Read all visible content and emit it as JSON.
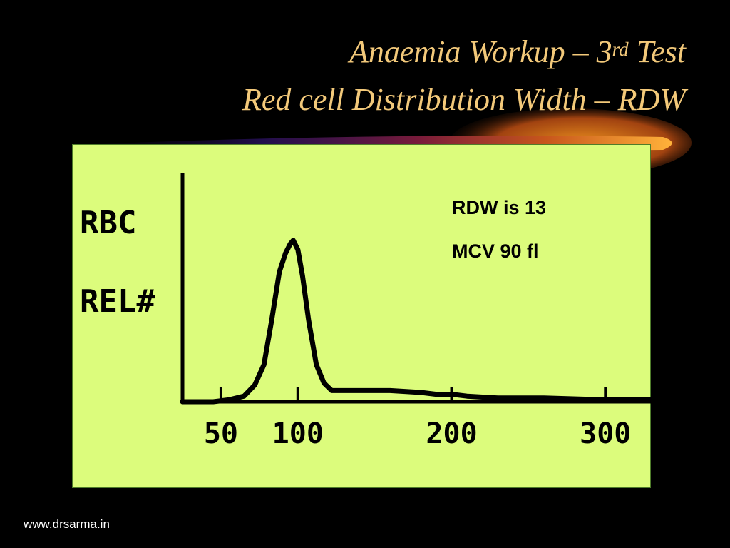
{
  "slide": {
    "title_main": "Anaemia Workup – 3",
    "title_sup": "rd",
    "title_tail": " Test",
    "subtitle": "Red cell Distribution Width – RDW",
    "notes": [
      "RDW is 13",
      "MCV 90 fl"
    ],
    "footer": "www.drsarma.in"
  },
  "colors": {
    "background": "#000000",
    "title": "#f3c97a",
    "panel": "#dcfc7c",
    "ink": "#000000",
    "footer": "#ffffff",
    "swoosh": "#e8891c"
  },
  "chart_data": {
    "type": "line",
    "ylabel_lines": [
      "RBC",
      "REL#"
    ],
    "xlabel": "",
    "x_ticks": [
      50,
      100,
      200,
      300
    ],
    "xlim": [
      25,
      330
    ],
    "ylim": [
      0,
      100
    ],
    "grid": false,
    "legend": "none",
    "series": [
      {
        "x": [
          25,
          45,
          55,
          65,
          72,
          78,
          83,
          88,
          92,
          95,
          97,
          100,
          103,
          107,
          112,
          117,
          122,
          130,
          140,
          160,
          180,
          190,
          200,
          210,
          230,
          260,
          300,
          330
        ],
        "y": [
          0,
          0,
          1,
          3,
          9,
          20,
          44,
          70,
          80,
          85,
          87,
          82,
          68,
          44,
          20,
          10,
          6,
          6,
          6,
          6,
          5,
          4,
          4,
          3,
          2,
          2,
          1,
          1
        ]
      }
    ]
  }
}
